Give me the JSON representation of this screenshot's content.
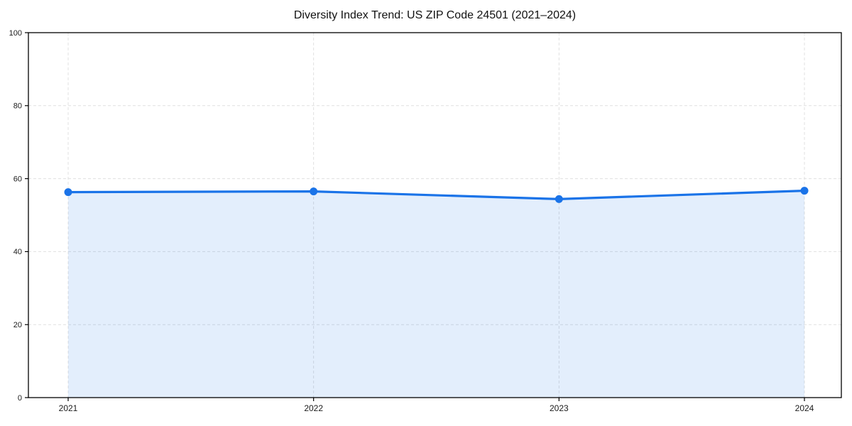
{
  "chart_data": {
    "type": "area",
    "title": "Diversity Index Trend: US ZIP Code 24501 (2021–2024)",
    "xlabel": "",
    "ylabel": "",
    "categories": [
      "2021",
      "2022",
      "2023",
      "2024"
    ],
    "series": [
      {
        "name": "Diversity Index",
        "values": [
          56.3,
          56.5,
          54.4,
          56.7
        ]
      }
    ],
    "ylim": [
      0,
      100
    ],
    "yticks": [
      0,
      20,
      40,
      60,
      80,
      100
    ],
    "grid": true,
    "grid_style": "dashed",
    "legend_position": "none",
    "colors": {
      "line": "#1a73e8",
      "marker": "#1a73e8",
      "fill": "rgba(26,115,232,0.12)",
      "grid": "#e0e0e0",
      "spine": "#000000",
      "tick": "#000000",
      "tick_label": "#1a1a1a",
      "title": "#111111",
      "background": "#ffffff"
    }
  }
}
